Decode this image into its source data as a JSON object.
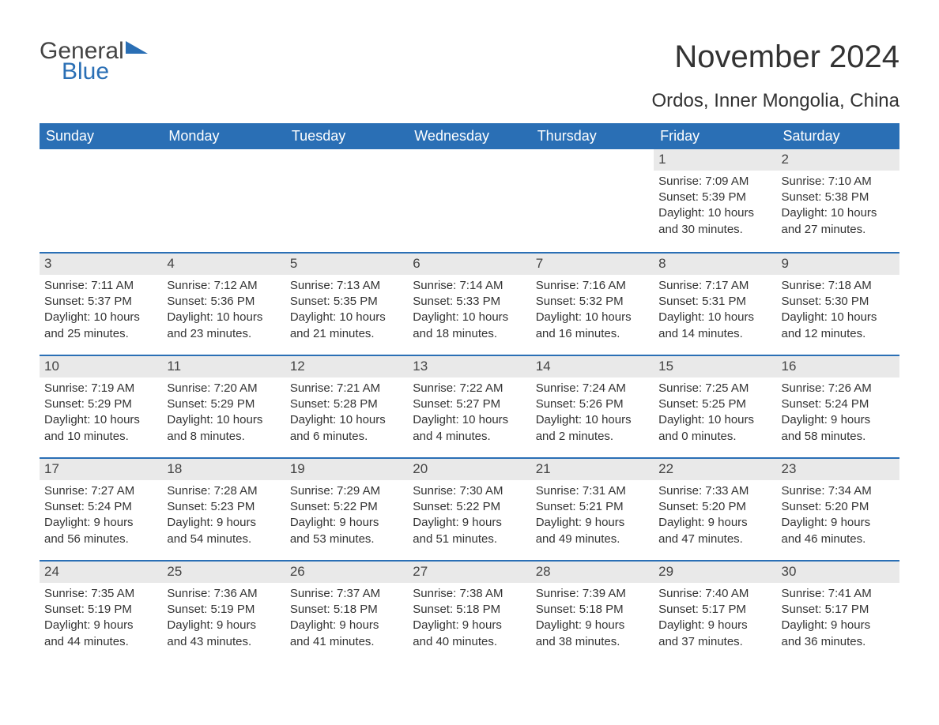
{
  "brand": {
    "part1": "General",
    "part2": "Blue",
    "icon_color": "#2a6fb5"
  },
  "title": "November 2024",
  "location": "Ordos, Inner Mongolia, China",
  "header_bg": "#2a6fb5",
  "header_fg": "#ffffff",
  "daynum_bg": "#e9e9e9",
  "divider_color": "#2a6fb5",
  "text_color": "#333333",
  "days_of_week": [
    "Sunday",
    "Monday",
    "Tuesday",
    "Wednesday",
    "Thursday",
    "Friday",
    "Saturday"
  ],
  "labels": {
    "sunrise": "Sunrise:",
    "sunset": "Sunset:",
    "daylight": "Daylight:"
  },
  "weeks": [
    [
      null,
      null,
      null,
      null,
      null,
      {
        "n": "1",
        "sunrise": "7:09 AM",
        "sunset": "5:39 PM",
        "daylight1": "10 hours",
        "daylight2": "and 30 minutes."
      },
      {
        "n": "2",
        "sunrise": "7:10 AM",
        "sunset": "5:38 PM",
        "daylight1": "10 hours",
        "daylight2": "and 27 minutes."
      }
    ],
    [
      {
        "n": "3",
        "sunrise": "7:11 AM",
        "sunset": "5:37 PM",
        "daylight1": "10 hours",
        "daylight2": "and 25 minutes."
      },
      {
        "n": "4",
        "sunrise": "7:12 AM",
        "sunset": "5:36 PM",
        "daylight1": "10 hours",
        "daylight2": "and 23 minutes."
      },
      {
        "n": "5",
        "sunrise": "7:13 AM",
        "sunset": "5:35 PM",
        "daylight1": "10 hours",
        "daylight2": "and 21 minutes."
      },
      {
        "n": "6",
        "sunrise": "7:14 AM",
        "sunset": "5:33 PM",
        "daylight1": "10 hours",
        "daylight2": "and 18 minutes."
      },
      {
        "n": "7",
        "sunrise": "7:16 AM",
        "sunset": "5:32 PM",
        "daylight1": "10 hours",
        "daylight2": "and 16 minutes."
      },
      {
        "n": "8",
        "sunrise": "7:17 AM",
        "sunset": "5:31 PM",
        "daylight1": "10 hours",
        "daylight2": "and 14 minutes."
      },
      {
        "n": "9",
        "sunrise": "7:18 AM",
        "sunset": "5:30 PM",
        "daylight1": "10 hours",
        "daylight2": "and 12 minutes."
      }
    ],
    [
      {
        "n": "10",
        "sunrise": "7:19 AM",
        "sunset": "5:29 PM",
        "daylight1": "10 hours",
        "daylight2": "and 10 minutes."
      },
      {
        "n": "11",
        "sunrise": "7:20 AM",
        "sunset": "5:29 PM",
        "daylight1": "10 hours",
        "daylight2": "and 8 minutes."
      },
      {
        "n": "12",
        "sunrise": "7:21 AM",
        "sunset": "5:28 PM",
        "daylight1": "10 hours",
        "daylight2": "and 6 minutes."
      },
      {
        "n": "13",
        "sunrise": "7:22 AM",
        "sunset": "5:27 PM",
        "daylight1": "10 hours",
        "daylight2": "and 4 minutes."
      },
      {
        "n": "14",
        "sunrise": "7:24 AM",
        "sunset": "5:26 PM",
        "daylight1": "10 hours",
        "daylight2": "and 2 minutes."
      },
      {
        "n": "15",
        "sunrise": "7:25 AM",
        "sunset": "5:25 PM",
        "daylight1": "10 hours",
        "daylight2": "and 0 minutes."
      },
      {
        "n": "16",
        "sunrise": "7:26 AM",
        "sunset": "5:24 PM",
        "daylight1": "9 hours",
        "daylight2": "and 58 minutes."
      }
    ],
    [
      {
        "n": "17",
        "sunrise": "7:27 AM",
        "sunset": "5:24 PM",
        "daylight1": "9 hours",
        "daylight2": "and 56 minutes."
      },
      {
        "n": "18",
        "sunrise": "7:28 AM",
        "sunset": "5:23 PM",
        "daylight1": "9 hours",
        "daylight2": "and 54 minutes."
      },
      {
        "n": "19",
        "sunrise": "7:29 AM",
        "sunset": "5:22 PM",
        "daylight1": "9 hours",
        "daylight2": "and 53 minutes."
      },
      {
        "n": "20",
        "sunrise": "7:30 AM",
        "sunset": "5:22 PM",
        "daylight1": "9 hours",
        "daylight2": "and 51 minutes."
      },
      {
        "n": "21",
        "sunrise": "7:31 AM",
        "sunset": "5:21 PM",
        "daylight1": "9 hours",
        "daylight2": "and 49 minutes."
      },
      {
        "n": "22",
        "sunrise": "7:33 AM",
        "sunset": "5:20 PM",
        "daylight1": "9 hours",
        "daylight2": "and 47 minutes."
      },
      {
        "n": "23",
        "sunrise": "7:34 AM",
        "sunset": "5:20 PM",
        "daylight1": "9 hours",
        "daylight2": "and 46 minutes."
      }
    ],
    [
      {
        "n": "24",
        "sunrise": "7:35 AM",
        "sunset": "5:19 PM",
        "daylight1": "9 hours",
        "daylight2": "and 44 minutes."
      },
      {
        "n": "25",
        "sunrise": "7:36 AM",
        "sunset": "5:19 PM",
        "daylight1": "9 hours",
        "daylight2": "and 43 minutes."
      },
      {
        "n": "26",
        "sunrise": "7:37 AM",
        "sunset": "5:18 PM",
        "daylight1": "9 hours",
        "daylight2": "and 41 minutes."
      },
      {
        "n": "27",
        "sunrise": "7:38 AM",
        "sunset": "5:18 PM",
        "daylight1": "9 hours",
        "daylight2": "and 40 minutes."
      },
      {
        "n": "28",
        "sunrise": "7:39 AM",
        "sunset": "5:18 PM",
        "daylight1": "9 hours",
        "daylight2": "and 38 minutes."
      },
      {
        "n": "29",
        "sunrise": "7:40 AM",
        "sunset": "5:17 PM",
        "daylight1": "9 hours",
        "daylight2": "and 37 minutes."
      },
      {
        "n": "30",
        "sunrise": "7:41 AM",
        "sunset": "5:17 PM",
        "daylight1": "9 hours",
        "daylight2": "and 36 minutes."
      }
    ]
  ]
}
